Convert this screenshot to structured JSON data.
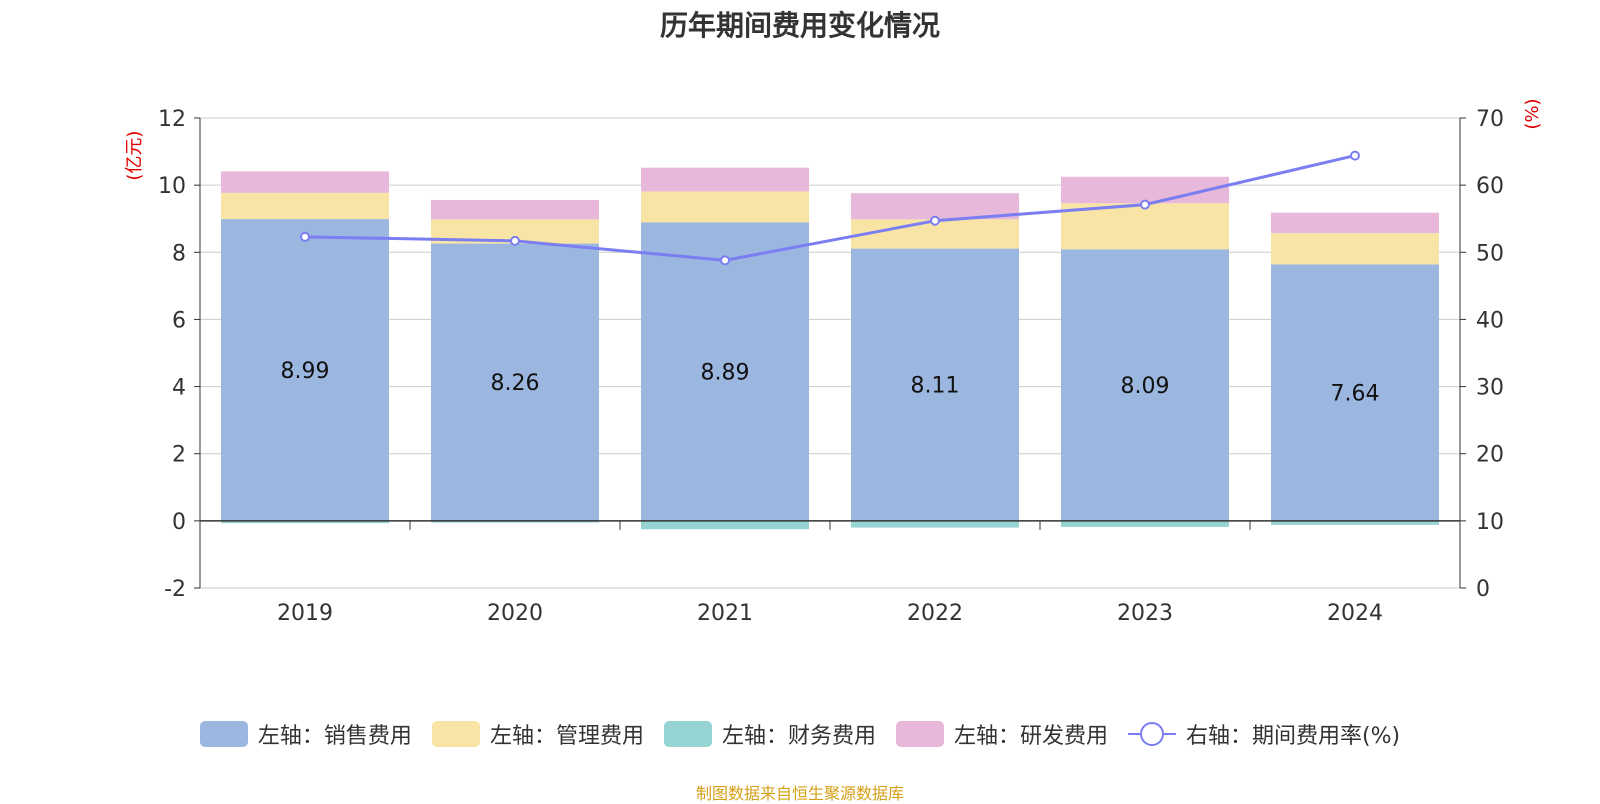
{
  "chart_data": {
    "type": "bar",
    "title": "历年期间费用变化情况",
    "categories": [
      "2019",
      "2020",
      "2021",
      "2022",
      "2023",
      "2024"
    ],
    "y_left": {
      "label": "(亿元)",
      "min": -2,
      "max": 12,
      "ticks": [
        -2,
        0,
        2,
        4,
        6,
        8,
        10,
        12
      ]
    },
    "y_right": {
      "label": "(%)",
      "min": 0,
      "max": 70,
      "ticks": [
        0,
        10,
        20,
        30,
        40,
        50,
        60,
        70
      ]
    },
    "series": [
      {
        "name": "左轴：销售费用",
        "type": "bar",
        "axis": "left",
        "color": "#9bb7e0",
        "values": [
          8.99,
          8.26,
          8.89,
          8.11,
          8.09,
          7.64
        ],
        "show_labels": true
      },
      {
        "name": "左轴：管理费用",
        "type": "bar",
        "axis": "left",
        "color": "#f8e5a6",
        "values": [
          0.78,
          0.72,
          0.92,
          0.87,
          1.37,
          0.93
        ]
      },
      {
        "name": "左轴：财务费用",
        "type": "bar",
        "axis": "left",
        "color": "#96d4d4",
        "values": [
          -0.07,
          -0.05,
          -0.25,
          -0.2,
          -0.18,
          -0.12
        ]
      },
      {
        "name": "左轴：研发费用",
        "type": "bar",
        "axis": "left",
        "color": "#e8b8da",
        "values": [
          0.64,
          0.58,
          0.71,
          0.78,
          0.79,
          0.61
        ]
      },
      {
        "name": "右轴：期间费用率(%)",
        "type": "line",
        "axis": "right",
        "color": "#7b7ef0",
        "values": [
          52.3,
          51.7,
          48.8,
          54.7,
          57.1,
          64.4
        ]
      }
    ],
    "grid": true,
    "legend_position": "bottom"
  },
  "source_note": "制图数据来自恒生聚源数据库"
}
